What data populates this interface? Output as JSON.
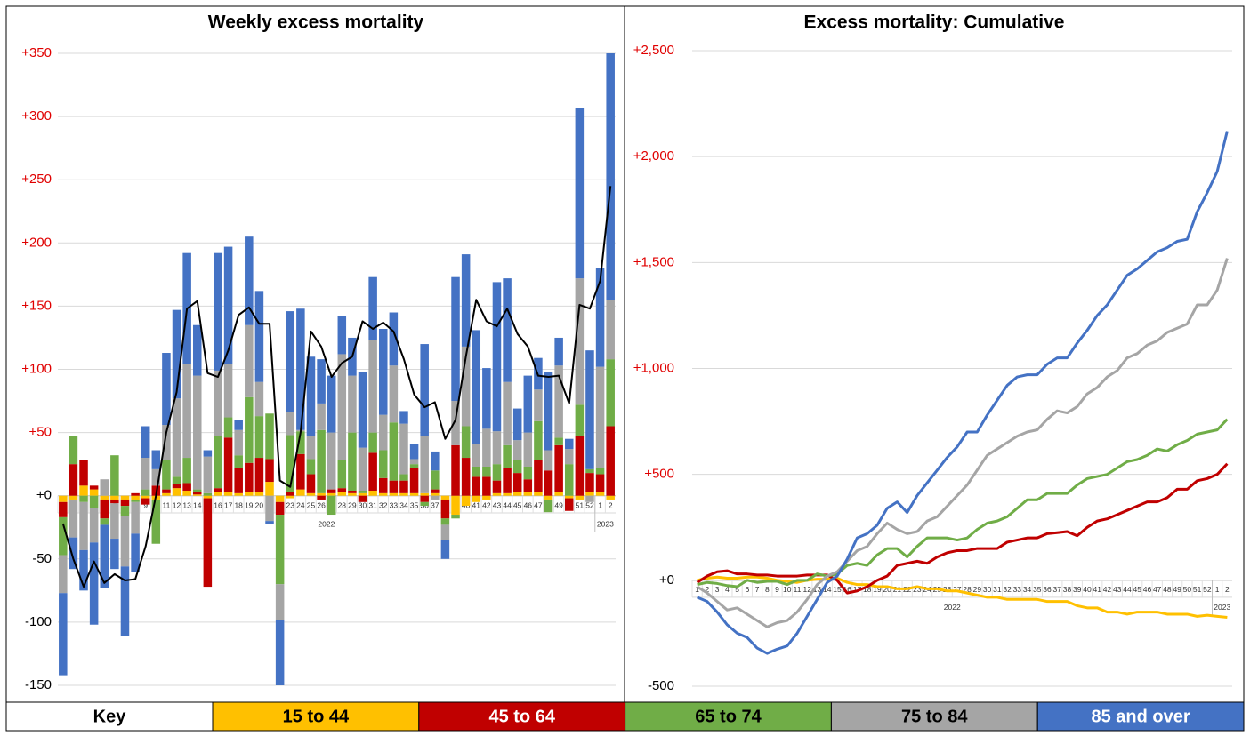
{
  "chart_data": [
    {
      "type": "bar",
      "stacked": true,
      "title": "Weekly excess mortality",
      "legend_title": "Key",
      "categories": [
        "1",
        "2",
        "3",
        "4",
        "5",
        "6",
        "7",
        "8",
        "9",
        "10",
        "11",
        "12",
        "13",
        "14",
        "15",
        "16",
        "17",
        "18",
        "19",
        "20",
        "21",
        "22",
        "23",
        "24",
        "25",
        "26",
        "27",
        "28",
        "29",
        "30",
        "31",
        "32",
        "33",
        "34",
        "35",
        "36",
        "37",
        "38",
        "39",
        "40",
        "41",
        "42",
        "43",
        "44",
        "45",
        "46",
        "47",
        "48",
        "49",
        "50",
        "51",
        "52",
        "1",
        "2"
      ],
      "x_groups": [
        {
          "label": "2022",
          "count": 52
        },
        {
          "label": "2023",
          "count": 2
        }
      ],
      "series": [
        {
          "name": "15 to 44",
          "color": "#ffc000",
          "values": [
            -5,
            -3,
            8,
            5,
            -3,
            -3,
            -3,
            -3,
            -2,
            -3,
            2,
            6,
            4,
            1,
            -2,
            3,
            3,
            2,
            3,
            3,
            11,
            -5,
            -2,
            5,
            2,
            2,
            2,
            3,
            2,
            2,
            4,
            2,
            2,
            2,
            2,
            2,
            2,
            -3,
            -15,
            -8,
            -5,
            -3,
            2,
            2,
            3,
            3,
            3,
            -3,
            3,
            -2,
            -3,
            3,
            3,
            -3
          ]
        },
        {
          "name": "45 to 64",
          "color": "#c00000",
          "values": [
            -12,
            25,
            20,
            3,
            -15,
            -3,
            -5,
            2,
            -5,
            8,
            3,
            3,
            6,
            2,
            -70,
            3,
            43,
            20,
            23,
            27,
            18,
            -10,
            3,
            28,
            15,
            -3,
            3,
            3,
            2,
            -5,
            30,
            12,
            10,
            10,
            20,
            -5,
            3,
            -15,
            40,
            30,
            15,
            15,
            10,
            20,
            15,
            10,
            25,
            20,
            37,
            -10,
            47,
            15,
            14,
            55
          ]
        },
        {
          "name": "65 to 74",
          "color": "#70ad47",
          "values": [
            -30,
            22,
            -5,
            -10,
            -5,
            32,
            -8,
            -2,
            5,
            -35,
            23,
            6,
            20,
            2,
            2,
            41,
            16,
            10,
            52,
            33,
            36,
            -55,
            45,
            18,
            12,
            50,
            -15,
            22,
            46,
            2,
            16,
            22,
            46,
            5,
            3,
            -3,
            15,
            -5,
            -3,
            25,
            8,
            8,
            13,
            18,
            10,
            10,
            31,
            -10,
            6,
            25,
            25,
            3,
            5,
            53
          ]
        },
        {
          "name": "75 to 84",
          "color": "#a5a5a5",
          "values": [
            -30,
            -30,
            -38,
            -27,
            13,
            -28,
            -40,
            -25,
            25,
            13,
            28,
            62,
            74,
            90,
            29,
            52,
            42,
            20,
            57,
            27,
            -20,
            -28,
            18,
            1,
            18,
            21,
            45,
            84,
            45,
            34,
            73,
            28,
            45,
            40,
            4,
            45,
            -3,
            -12,
            35,
            63,
            18,
            30,
            26,
            50,
            16,
            27,
            25,
            16,
            57,
            12,
            100,
            -5,
            80,
            47
          ]
        },
        {
          "name": "85 and over",
          "color": "#4472c4",
          "values": [
            -65,
            -25,
            -32,
            -65,
            -50,
            -24,
            -55,
            -30,
            25,
            15,
            57,
            70,
            88,
            40,
            5,
            93,
            93,
            8,
            70,
            72,
            -2,
            -52,
            80,
            96,
            63,
            35,
            45,
            30,
            30,
            60,
            50,
            68,
            42,
            10,
            12,
            73,
            15,
            -15,
            98,
            73,
            90,
            48,
            118,
            82,
            25,
            45,
            25,
            62,
            22,
            8,
            135,
            94,
            78,
            195
          ]
        }
      ],
      "line": {
        "color": "#000000",
        "values": [
          -22,
          -50,
          -72,
          -52,
          -69,
          -62,
          -67,
          -66,
          -40,
          0,
          50,
          82,
          148,
          154,
          97,
          94,
          115,
          143,
          149,
          136,
          136,
          12,
          7,
          50,
          130,
          118,
          94,
          105,
          110,
          138,
          132,
          137,
          130,
          108,
          80,
          70,
          74,
          45,
          60,
          110,
          155,
          138,
          134,
          148,
          128,
          118,
          95,
          94,
          95,
          73,
          151,
          148,
          170,
          245
        ]
      },
      "ylim": [
        -150,
        350
      ],
      "yticks": [
        {
          "value": 350,
          "label": "+350"
        },
        {
          "value": 300,
          "label": "+300"
        },
        {
          "value": 250,
          "label": "+250"
        },
        {
          "value": 200,
          "label": "+200"
        },
        {
          "value": 150,
          "label": "+150"
        },
        {
          "value": 100,
          "label": "+100"
        },
        {
          "value": 50,
          "label": "+50"
        },
        {
          "value": 0,
          "label": "+0"
        },
        -50,
        -100,
        -150
      ],
      "grid": true
    },
    {
      "type": "line",
      "title": "Excess mortality: Cumulative",
      "categories": [
        "1",
        "2",
        "3",
        "4",
        "5",
        "6",
        "7",
        "8",
        "9",
        "10",
        "11",
        "12",
        "13",
        "14",
        "15",
        "16",
        "17",
        "18",
        "19",
        "20",
        "21",
        "22",
        "23",
        "24",
        "25",
        "26",
        "27",
        "28",
        "29",
        "30",
        "31",
        "32",
        "33",
        "34",
        "35",
        "36",
        "37",
        "38",
        "39",
        "40",
        "41",
        "42",
        "43",
        "44",
        "45",
        "46",
        "47",
        "48",
        "49",
        "50",
        "51",
        "52",
        "1",
        "2"
      ],
      "x_groups": [
        {
          "label": "2022",
          "count": 52
        },
        {
          "label": "2023",
          "count": 2
        }
      ],
      "series": [
        {
          "name": "15 to 44",
          "color": "#ffc000",
          "values": [
            0,
            10,
            15,
            10,
            10,
            15,
            15,
            10,
            0,
            -5,
            -10,
            0,
            5,
            5,
            10,
            -10,
            -20,
            -20,
            -30,
            -30,
            -40,
            -40,
            -30,
            -40,
            -40,
            -50,
            -50,
            -60,
            -70,
            -80,
            -80,
            -90,
            -90,
            -90,
            -90,
            -100,
            -100,
            -100,
            -120,
            -130,
            -130,
            -150,
            -150,
            -160,
            -150,
            -150,
            -150,
            -160,
            -160,
            -160,
            -170,
            -165,
            -170,
            -175
          ]
        },
        {
          "name": "45 to 64",
          "color": "#c00000",
          "values": [
            -10,
            20,
            40,
            45,
            30,
            30,
            25,
            25,
            20,
            20,
            20,
            25,
            25,
            25,
            0,
            -60,
            -50,
            -30,
            0,
            20,
            70,
            80,
            90,
            80,
            110,
            130,
            140,
            140,
            150,
            150,
            150,
            180,
            190,
            200,
            200,
            220,
            225,
            230,
            210,
            250,
            280,
            290,
            310,
            330,
            350,
            370,
            370,
            390,
            430,
            430,
            470,
            480,
            500,
            550
          ]
        },
        {
          "name": "65 to 74",
          "color": "#70ad47",
          "values": [
            -20,
            -10,
            -15,
            -25,
            -30,
            0,
            -10,
            -5,
            -5,
            -20,
            0,
            0,
            30,
            20,
            30,
            70,
            80,
            70,
            120,
            150,
            150,
            110,
            160,
            200,
            200,
            200,
            190,
            200,
            240,
            270,
            280,
            300,
            340,
            380,
            380,
            410,
            410,
            410,
            450,
            480,
            490,
            500,
            530,
            560,
            570,
            590,
            620,
            610,
            640,
            660,
            690,
            700,
            710,
            760
          ]
        },
        {
          "name": "75 to 84",
          "color": "#a5a5a5",
          "values": [
            -30,
            -60,
            -100,
            -140,
            -130,
            -160,
            -190,
            -220,
            -200,
            -190,
            -150,
            -90,
            -20,
            20,
            40,
            90,
            140,
            160,
            220,
            270,
            240,
            220,
            230,
            280,
            300,
            350,
            400,
            450,
            520,
            590,
            620,
            650,
            680,
            700,
            710,
            760,
            800,
            790,
            820,
            880,
            910,
            960,
            990,
            1050,
            1070,
            1110,
            1130,
            1170,
            1190,
            1210,
            1300,
            1300,
            1370,
            1520
          ]
        },
        {
          "name": "85 and over",
          "color": "#4472c4",
          "values": [
            -80,
            -100,
            -150,
            -210,
            -250,
            -270,
            -320,
            -345,
            -325,
            -310,
            -250,
            -170,
            -90,
            -10,
            20,
            100,
            200,
            220,
            260,
            340,
            370,
            320,
            400,
            460,
            520,
            580,
            630,
            700,
            700,
            780,
            850,
            920,
            960,
            970,
            970,
            1020,
            1050,
            1050,
            1120,
            1180,
            1250,
            1300,
            1370,
            1440,
            1470,
            1510,
            1550,
            1570,
            1600,
            1610,
            1740,
            1830,
            1930,
            2120
          ]
        }
      ],
      "ylim": [
        -500,
        2500
      ],
      "yticks": [
        {
          "value": 2500,
          "label": "+2,500"
        },
        {
          "value": 2000,
          "label": "+2,000"
        },
        {
          "value": 1500,
          "label": "+1,500"
        },
        {
          "value": 1000,
          "label": "+1,000"
        },
        {
          "value": 500,
          "label": "+500"
        },
        {
          "value": 0,
          "label": "+0"
        },
        -500
      ],
      "grid": true
    }
  ]
}
